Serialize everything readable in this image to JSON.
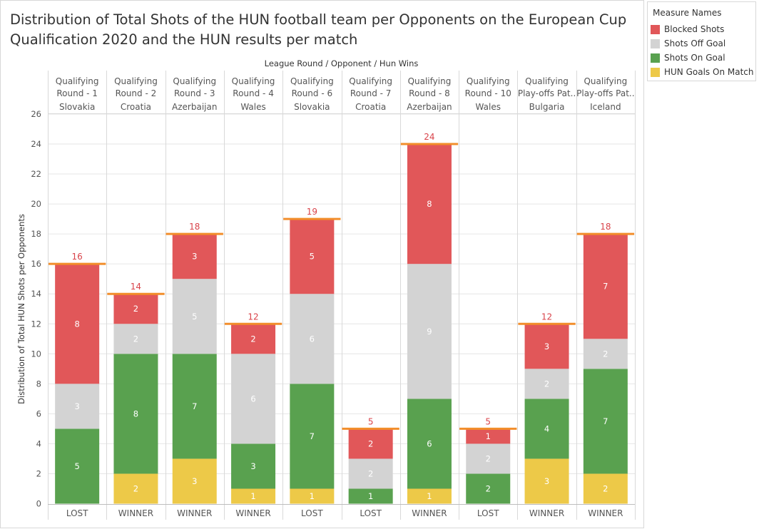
{
  "title": "Distribution of  Total Shots of the HUN football team per Opponents on the European Cup Qualification 2020 and the HUN results per match",
  "legend": {
    "title": "Measure Names",
    "items": [
      {
        "label": "Blocked Shots",
        "color": "#e15759"
      },
      {
        "label": "Shots Off Goal",
        "color": "#d3d3d3"
      },
      {
        "label": "Shots On Goal",
        "color": "#59a14f"
      },
      {
        "label": "HUN Goals On Match",
        "color": "#edc948"
      }
    ]
  },
  "colors": {
    "total_line": "#f28e2b",
    "total_label": "#d9434a",
    "grid": "#e6e6e6",
    "divider": "#d9d9d9",
    "bar_label_light": "#ffffff"
  },
  "chart_data": {
    "type": "bar",
    "stacked": true,
    "header_title": "League Round  /  Opponent  /  Hun Wins",
    "ylabel": "Distribution of Total HUN Shots per Opponents",
    "ylim": [
      0,
      26
    ],
    "yticks": [
      0,
      2,
      4,
      6,
      8,
      10,
      12,
      14,
      16,
      18,
      20,
      22,
      24,
      26
    ],
    "grid": true,
    "columns": [
      {
        "round": [
          "Qualifying",
          "Round - 1"
        ],
        "opponent": "Slovakia",
        "result": "LOST"
      },
      {
        "round": [
          "Qualifying",
          "Round - 2"
        ],
        "opponent": "Croatia",
        "result": "WINNER"
      },
      {
        "round": [
          "Qualifying",
          "Round - 3"
        ],
        "opponent": "Azerbaijan",
        "result": "WINNER"
      },
      {
        "round": [
          "Qualifying",
          "Round - 4"
        ],
        "opponent": "Wales",
        "result": "WINNER"
      },
      {
        "round": [
          "Qualifying",
          "Round - 6"
        ],
        "opponent": "Slovakia",
        "result": "LOST"
      },
      {
        "round": [
          "Qualifying",
          "Round - 7"
        ],
        "opponent": "Croatia",
        "result": "LOST"
      },
      {
        "round": [
          "Qualifying",
          "Round - 8"
        ],
        "opponent": "Azerbaijan",
        "result": "WINNER"
      },
      {
        "round": [
          "Qualifying",
          "Round - 10"
        ],
        "opponent": "Wales",
        "result": "LOST"
      },
      {
        "round": [
          "Qualifying",
          "Play-offs Pat.."
        ],
        "opponent": "Bulgaria",
        "result": "WINNER"
      },
      {
        "round": [
          "Qualifying",
          "Play-offs Pat.."
        ],
        "opponent": "Iceland",
        "result": "WINNER"
      }
    ],
    "series": [
      {
        "name": "HUN Goals On Match",
        "values": [
          0,
          2,
          3,
          1,
          1,
          0,
          1,
          0,
          3,
          2
        ]
      },
      {
        "name": "Shots On Goal",
        "values": [
          5,
          8,
          7,
          3,
          7,
          1,
          6,
          2,
          4,
          7
        ]
      },
      {
        "name": "Shots Off Goal",
        "values": [
          3,
          2,
          5,
          6,
          6,
          2,
          9,
          2,
          2,
          2
        ]
      },
      {
        "name": "Blocked Shots",
        "values": [
          8,
          2,
          3,
          2,
          5,
          2,
          8,
          1,
          3,
          7
        ]
      }
    ],
    "totals": [
      16,
      14,
      18,
      12,
      19,
      5,
      24,
      5,
      12,
      18
    ]
  }
}
